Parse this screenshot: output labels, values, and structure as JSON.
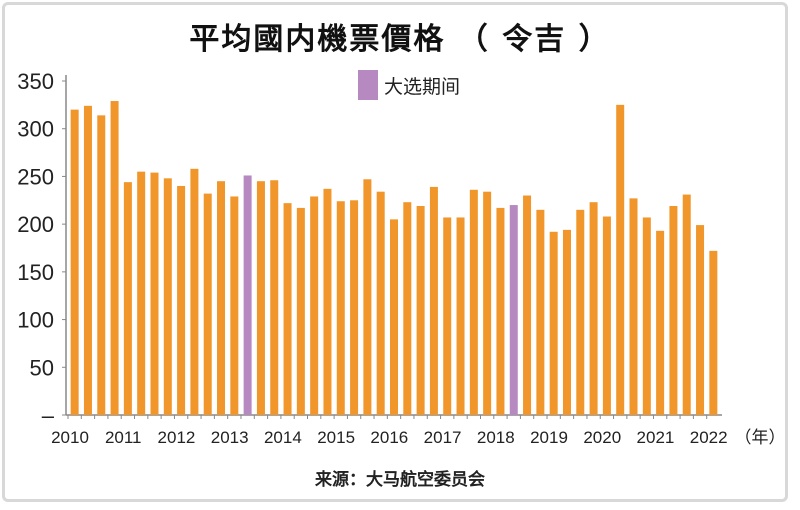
{
  "chart_data": {
    "type": "bar",
    "title": "平均國内機票價格 （ 令吉 ）",
    "xlabel": "（年）",
    "ylabel": "",
    "ylim": [
      0,
      350
    ],
    "yticks": [
      "–",
      "50",
      "100",
      "150",
      "200",
      "250",
      "300",
      "350"
    ],
    "xticks": [
      "2010",
      "2011",
      "2012",
      "2013",
      "2014",
      "2015",
      "2016",
      "2017",
      "2018",
      "2019",
      "2020",
      "2021",
      "2022"
    ],
    "legend": {
      "label": "大选期间",
      "position": "top-center"
    },
    "colors": {
      "normal": "#f0962a",
      "election": "#b689c0"
    },
    "values": [
      320,
      324,
      314,
      329,
      244,
      255,
      254,
      248,
      240,
      258,
      232,
      245,
      229,
      251,
      245,
      246,
      222,
      217,
      229,
      237,
      224,
      225,
      247,
      234,
      205,
      223,
      219,
      239,
      207,
      207,
      236,
      234,
      217,
      220,
      230,
      215,
      192,
      194,
      215,
      223,
      208,
      325,
      227,
      207,
      193,
      219,
      231,
      199,
      172
    ],
    "election_indices": [
      13,
      33
    ],
    "source": "来源：大马航空委员会"
  }
}
